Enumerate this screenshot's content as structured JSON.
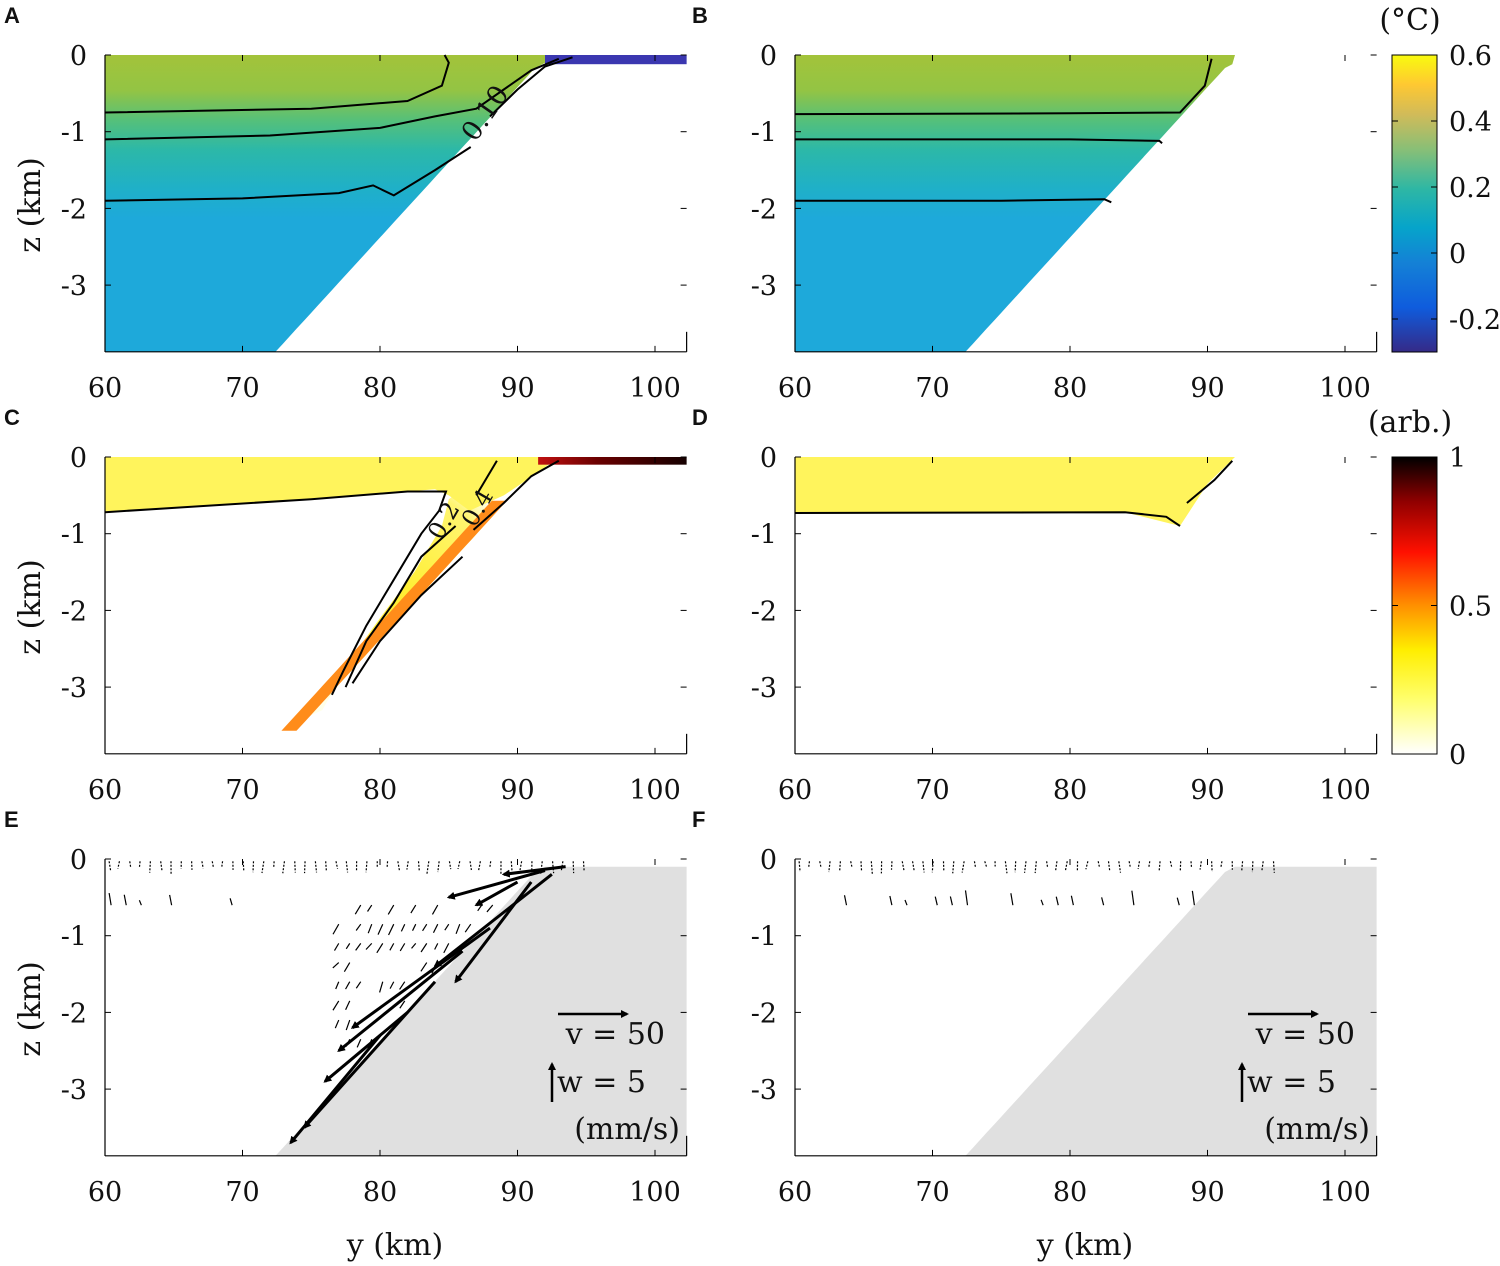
{
  "panel_letters": [
    "A",
    "B",
    "C",
    "D",
    "E",
    "F"
  ],
  "axis_labels": {
    "z": "z (km)",
    "y": "y (km)"
  },
  "colorbars": {
    "temperature": {
      "label": "(°C)",
      "ticks": [
        "0.6",
        "0.4",
        "0.2",
        "0",
        "-0.2"
      ],
      "tick_values": [
        0.6,
        0.4,
        0.2,
        0,
        -0.2
      ],
      "range": [
        -0.3,
        0.6
      ],
      "colormap": "parula"
    },
    "tracer": {
      "label": "(arb.)",
      "ticks": [
        "1",
        "0.5",
        "0"
      ],
      "tick_values": [
        1,
        0.5,
        0
      ],
      "range": [
        0,
        1
      ],
      "colormap": "hot-reversed"
    }
  },
  "legend": {
    "v_label": "v = 50",
    "w_label": "w = 5",
    "units": "(mm/s)"
  },
  "chart_data": [
    {
      "panel": "A",
      "type": "heatmap",
      "variable": "temperature",
      "xlabel": "",
      "ylabel": "z (km)",
      "xlim": [
        60,
        102.3
      ],
      "ylim": [
        -3.87,
        0
      ],
      "xticks": [
        "60",
        "70",
        "80",
        "90",
        "100"
      ],
      "yticks": [
        "0",
        "-1",
        "-2",
        "-3"
      ],
      "contour_labels": [
        "0.10"
      ]
    },
    {
      "panel": "B",
      "type": "heatmap",
      "variable": "temperature",
      "xlabel": "",
      "ylabel": "",
      "xlim": [
        60,
        102.3
      ],
      "ylim": [
        -3.87,
        0
      ],
      "xticks": [
        "60",
        "70",
        "80",
        "90",
        "100"
      ],
      "yticks": [
        "0",
        "-1",
        "-2",
        "-3"
      ],
      "contour_labels": []
    },
    {
      "panel": "C",
      "type": "heatmap",
      "variable": "tracer",
      "xlabel": "",
      "ylabel": "z (km)",
      "xlim": [
        60,
        102.3
      ],
      "ylim": [
        -3.87,
        0
      ],
      "xticks": [
        "60",
        "70",
        "80",
        "90",
        "100"
      ],
      "yticks": [
        "0",
        "-1",
        "-2",
        "-3"
      ],
      "contour_labels": [
        "0.2",
        "0.4"
      ]
    },
    {
      "panel": "D",
      "type": "heatmap",
      "variable": "tracer",
      "xlabel": "",
      "ylabel": "",
      "xlim": [
        60,
        102.3
      ],
      "ylim": [
        -3.87,
        0
      ],
      "xticks": [
        "60",
        "70",
        "80",
        "90",
        "100"
      ],
      "yticks": [
        "0",
        "-1",
        "-2",
        "-3"
      ],
      "contour_labels": []
    },
    {
      "panel": "E",
      "type": "quiver",
      "xlabel": "y (km)",
      "ylabel": "z (km)",
      "xlim": [
        60,
        102.3
      ],
      "ylim": [
        -3.87,
        0
      ],
      "xticks": [
        "60",
        "70",
        "80",
        "90",
        "100"
      ],
      "yticks": [
        "0",
        "-1",
        "-2",
        "-3"
      ],
      "arrows": [
        [
          92,
          -0.15,
          85,
          -0.5
        ],
        [
          92.5,
          -0.2,
          84,
          -1.4
        ],
        [
          91,
          -0.3,
          85.5,
          -1.6
        ],
        [
          88,
          -0.9,
          78,
          -2.2
        ],
        [
          86,
          -1.2,
          77,
          -2.5
        ],
        [
          84,
          -1.6,
          74.5,
          -3.5
        ],
        [
          82,
          -2.0,
          76,
          -2.9
        ],
        [
          80,
          -2.3,
          73.5,
          -3.7
        ],
        [
          93.5,
          -0.1,
          89,
          -0.2
        ],
        [
          90,
          -0.3,
          87,
          -0.6
        ]
      ]
    },
    {
      "panel": "F",
      "type": "quiver",
      "xlabel": "y (km)",
      "ylabel": "",
      "xlim": [
        60,
        102.3
      ],
      "ylim": [
        -3.87,
        0
      ],
      "xticks": [
        "60",
        "70",
        "80",
        "90",
        "100"
      ],
      "yticks": [
        "0",
        "-1",
        "-2",
        "-3"
      ],
      "arrows": []
    }
  ]
}
